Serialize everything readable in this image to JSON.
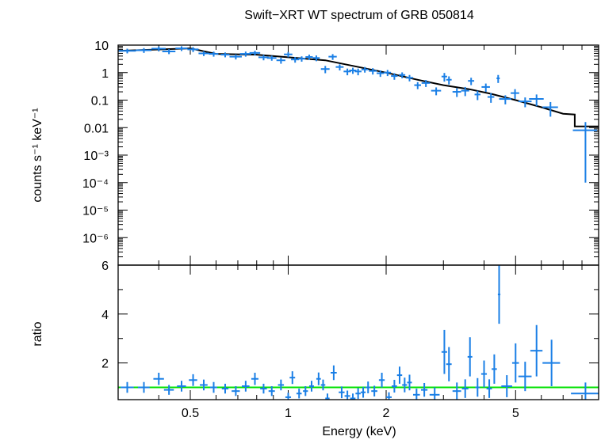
{
  "title": "Swift−XRT WT spectrum of GRB 050814",
  "xlabel": "Energy (keV)",
  "colors": {
    "data": "#1a7fe6",
    "model": "#000000",
    "unity": "#00e000",
    "axes": "#000000"
  },
  "chart_data": [
    {
      "type": "scatter",
      "panel": "spectrum",
      "ylabel": "counts s⁻¹ keV⁻¹",
      "xscale": "log",
      "yscale": "log",
      "xlim": [
        0.3,
        9.0
      ],
      "ylim": [
        1e-07,
        10
      ],
      "x_ticks": [
        0.5,
        1,
        2,
        5
      ],
      "y_ticks": [
        {
          "v": 10,
          "label": "10"
        },
        {
          "v": 1,
          "label": "1"
        },
        {
          "v": 0.1,
          "label": "0.1"
        },
        {
          "v": 0.01,
          "label": "0.01"
        },
        {
          "v": 0.001,
          "label": "10⁻³"
        },
        {
          "v": 0.0001,
          "label": "10⁻⁴"
        },
        {
          "v": 1e-05,
          "label": "10⁻⁵"
        },
        {
          "v": 1e-06,
          "label": "10⁻⁶"
        }
      ],
      "points": [
        {
          "x": 0.32,
          "dx": 0.02,
          "y": 6.2,
          "dy": 1.2
        },
        {
          "x": 0.36,
          "dx": 0.02,
          "y": 6.5,
          "dy": 1.3
        },
        {
          "x": 0.4,
          "dx": 0.02,
          "y": 7.4,
          "dy": 1.5
        },
        {
          "x": 0.43,
          "dx": 0.02,
          "y": 5.9,
          "dy": 1.2
        },
        {
          "x": 0.47,
          "dx": 0.02,
          "y": 7.6,
          "dy": 1.5
        },
        {
          "x": 0.51,
          "dx": 0.02,
          "y": 7.0,
          "dy": 1.4
        },
        {
          "x": 0.55,
          "dx": 0.02,
          "y": 5.0,
          "dy": 1.0
        },
        {
          "x": 0.59,
          "dx": 0.02,
          "y": 4.8,
          "dy": 1.0
        },
        {
          "x": 0.64,
          "dx": 0.02,
          "y": 4.5,
          "dy": 0.9
        },
        {
          "x": 0.69,
          "dx": 0.03,
          "y": 3.8,
          "dy": 0.8
        },
        {
          "x": 0.74,
          "dx": 0.03,
          "y": 4.8,
          "dy": 1.0
        },
        {
          "x": 0.79,
          "dx": 0.03,
          "y": 5.2,
          "dy": 1.0
        },
        {
          "x": 0.84,
          "dx": 0.03,
          "y": 3.6,
          "dy": 0.8
        },
        {
          "x": 0.89,
          "dx": 0.03,
          "y": 3.4,
          "dy": 0.7
        },
        {
          "x": 0.95,
          "dx": 0.03,
          "y": 2.8,
          "dy": 0.7
        },
        {
          "x": 1.0,
          "dx": 0.03,
          "y": 4.6,
          "dy": 1.0
        },
        {
          "x": 1.05,
          "dx": 0.03,
          "y": 3.0,
          "dy": 0.7
        },
        {
          "x": 1.1,
          "dx": 0.03,
          "y": 3.2,
          "dy": 0.7
        },
        {
          "x": 1.16,
          "dx": 0.03,
          "y": 3.7,
          "dy": 0.8
        },
        {
          "x": 1.22,
          "dx": 0.03,
          "y": 3.4,
          "dy": 0.8
        },
        {
          "x": 1.3,
          "dx": 0.04,
          "y": 1.35,
          "dy": 0.4
        },
        {
          "x": 1.37,
          "dx": 0.04,
          "y": 3.8,
          "dy": 0.9
        },
        {
          "x": 1.44,
          "dx": 0.04,
          "y": 1.6,
          "dy": 0.4
        },
        {
          "x": 1.52,
          "dx": 0.04,
          "y": 1.1,
          "dy": 0.3
        },
        {
          "x": 1.58,
          "dx": 0.04,
          "y": 1.2,
          "dy": 0.3
        },
        {
          "x": 1.64,
          "dx": 0.04,
          "y": 1.1,
          "dy": 0.3
        },
        {
          "x": 1.72,
          "dx": 0.04,
          "y": 1.3,
          "dy": 0.3
        },
        {
          "x": 1.82,
          "dx": 0.05,
          "y": 1.15,
          "dy": 0.3
        },
        {
          "x": 1.92,
          "dx": 0.05,
          "y": 0.95,
          "dy": 0.25
        },
        {
          "x": 2.02,
          "dx": 0.05,
          "y": 1.0,
          "dy": 0.25
        },
        {
          "x": 2.12,
          "dx": 0.05,
          "y": 0.75,
          "dy": 0.2
        },
        {
          "x": 2.24,
          "dx": 0.05,
          "y": 0.82,
          "dy": 0.2
        },
        {
          "x": 2.36,
          "dx": 0.06,
          "y": 0.65,
          "dy": 0.17
        },
        {
          "x": 2.5,
          "dx": 0.06,
          "y": 0.35,
          "dy": 0.1
        },
        {
          "x": 2.65,
          "dx": 0.08,
          "y": 0.42,
          "dy": 0.12
        },
        {
          "x": 2.85,
          "dx": 0.1,
          "y": 0.22,
          "dy": 0.07
        },
        {
          "x": 3.02,
          "dx": 0.06,
          "y": 0.72,
          "dy": 0.25
        },
        {
          "x": 3.12,
          "dx": 0.06,
          "y": 0.55,
          "dy": 0.18
        },
        {
          "x": 3.3,
          "dx": 0.1,
          "y": 0.2,
          "dy": 0.07
        },
        {
          "x": 3.5,
          "dx": 0.1,
          "y": 0.22,
          "dy": 0.08
        },
        {
          "x": 3.65,
          "dx": 0.08,
          "y": 0.5,
          "dy": 0.15
        },
        {
          "x": 3.82,
          "dx": 0.08,
          "y": 0.16,
          "dy": 0.06
        },
        {
          "x": 4.05,
          "dx": 0.12,
          "y": 0.3,
          "dy": 0.1
        },
        {
          "x": 4.2,
          "dx": 0.1,
          "y": 0.13,
          "dy": 0.05
        },
        {
          "x": 4.42,
          "dx": 0.05,
          "y": 0.62,
          "dy": 0.2
        },
        {
          "x": 4.65,
          "dx": 0.2,
          "y": 0.11,
          "dy": 0.04
        },
        {
          "x": 4.98,
          "dx": 0.15,
          "y": 0.18,
          "dy": 0.07
        },
        {
          "x": 5.35,
          "dx": 0.25,
          "y": 0.09,
          "dy": 0.035
        },
        {
          "x": 5.8,
          "dx": 0.3,
          "y": 0.11,
          "dy": 0.05
        },
        {
          "x": 6.4,
          "dx": 0.35,
          "y": 0.055,
          "dy": 0.03
        },
        {
          "x": 8.2,
          "dx": 0.7,
          "y": 0.008,
          "dy": 0.0079
        }
      ],
      "model": [
        {
          "x0": 0.3,
          "x1": 0.5,
          "y0": 6.2,
          "y1": 7.6
        },
        {
          "x0": 0.5,
          "x1": 0.6,
          "y0": 7.6,
          "y1": 4.8
        },
        {
          "x0": 0.6,
          "x1": 0.8,
          "y0": 4.8,
          "y1": 4.5
        },
        {
          "x0": 0.8,
          "x1": 1.0,
          "y0": 4.5,
          "y1": 3.6
        },
        {
          "x0": 1.0,
          "x1": 1.3,
          "y0": 3.6,
          "y1": 2.8
        },
        {
          "x0": 1.3,
          "x1": 1.6,
          "y0": 2.8,
          "y1": 1.7
        },
        {
          "x0": 1.6,
          "x1": 2.0,
          "y0": 1.7,
          "y1": 1.0
        },
        {
          "x0": 2.0,
          "x1": 2.5,
          "y0": 1.0,
          "y1": 0.55
        },
        {
          "x0": 2.5,
          "x1": 3.0,
          "y0": 0.55,
          "y1": 0.35
        },
        {
          "x0": 3.0,
          "x1": 3.6,
          "y0": 0.35,
          "y1": 0.25
        },
        {
          "x0": 3.6,
          "x1": 4.2,
          "y0": 0.25,
          "y1": 0.17
        },
        {
          "x0": 4.2,
          "x1": 5.0,
          "y0": 0.17,
          "y1": 0.1
        },
        {
          "x0": 5.0,
          "x1": 6.0,
          "y0": 0.1,
          "y1": 0.055
        },
        {
          "x0": 6.0,
          "x1": 7.0,
          "y0": 0.055,
          "y1": 0.032
        },
        {
          "x0": 7.0,
          "x1": 7.6,
          "y0": 0.032,
          "y1": 0.03
        },
        {
          "x0": 7.6,
          "x1": 9.0,
          "y0": 0.011,
          "y1": 0.011
        }
      ]
    },
    {
      "type": "scatter",
      "panel": "ratio",
      "ylabel": "ratio",
      "xscale": "log",
      "yscale": "linear",
      "xlim": [
        0.3,
        9.0
      ],
      "ylim": [
        0.5,
        6
      ],
      "y_ticks": [
        {
          "v": 2,
          "label": "2"
        },
        {
          "v": 4,
          "label": "4"
        },
        {
          "v": 6,
          "label": "6"
        }
      ],
      "unity": 1,
      "points": [
        {
          "x": 0.32,
          "dx": 0.015,
          "y": 1.0,
          "dy": 0.22
        },
        {
          "x": 0.36,
          "dx": 0.015,
          "y": 1.0,
          "dy": 0.22
        },
        {
          "x": 0.4,
          "dx": 0.015,
          "y": 1.35,
          "dy": 0.25
        },
        {
          "x": 0.43,
          "dx": 0.015,
          "y": 0.9,
          "dy": 0.2
        },
        {
          "x": 0.47,
          "dx": 0.015,
          "y": 1.05,
          "dy": 0.22
        },
        {
          "x": 0.51,
          "dx": 0.015,
          "y": 1.3,
          "dy": 0.24
        },
        {
          "x": 0.55,
          "dx": 0.015,
          "y": 1.1,
          "dy": 0.22
        },
        {
          "x": 0.59,
          "dx": 0.015,
          "y": 1.0,
          "dy": 0.22
        },
        {
          "x": 0.64,
          "dx": 0.015,
          "y": 0.95,
          "dy": 0.2
        },
        {
          "x": 0.69,
          "dx": 0.02,
          "y": 0.85,
          "dy": 0.2
        },
        {
          "x": 0.74,
          "dx": 0.02,
          "y": 1.05,
          "dy": 0.22
        },
        {
          "x": 0.79,
          "dx": 0.02,
          "y": 1.35,
          "dy": 0.25
        },
        {
          "x": 0.84,
          "dx": 0.02,
          "y": 0.95,
          "dy": 0.2
        },
        {
          "x": 0.89,
          "dx": 0.02,
          "y": 0.85,
          "dy": 0.2
        },
        {
          "x": 0.95,
          "dx": 0.02,
          "y": 1.1,
          "dy": 0.22
        },
        {
          "x": 1.0,
          "dx": 0.02,
          "y": 0.6,
          "dy": 0.18
        },
        {
          "x": 1.03,
          "dx": 0.02,
          "y": 1.4,
          "dy": 0.26
        },
        {
          "x": 1.08,
          "dx": 0.02,
          "y": 0.75,
          "dy": 0.2
        },
        {
          "x": 1.13,
          "dx": 0.02,
          "y": 0.85,
          "dy": 0.2
        },
        {
          "x": 1.18,
          "dx": 0.02,
          "y": 1.05,
          "dy": 0.22
        },
        {
          "x": 1.24,
          "dx": 0.02,
          "y": 1.35,
          "dy": 0.26
        },
        {
          "x": 1.28,
          "dx": 0.02,
          "y": 1.1,
          "dy": 0.22
        },
        {
          "x": 1.32,
          "dx": 0.02,
          "y": 0.55,
          "dy": 0.2
        },
        {
          "x": 1.38,
          "dx": 0.03,
          "y": 1.6,
          "dy": 0.3
        },
        {
          "x": 1.46,
          "dx": 0.03,
          "y": 0.8,
          "dy": 0.24
        },
        {
          "x": 1.52,
          "dx": 0.03,
          "y": 0.65,
          "dy": 0.22
        },
        {
          "x": 1.58,
          "dx": 0.03,
          "y": 0.55,
          "dy": 0.2
        },
        {
          "x": 1.64,
          "dx": 0.03,
          "y": 0.75,
          "dy": 0.22
        },
        {
          "x": 1.7,
          "dx": 0.03,
          "y": 0.8,
          "dy": 0.22
        },
        {
          "x": 1.76,
          "dx": 0.03,
          "y": 1.0,
          "dy": 0.24
        },
        {
          "x": 1.84,
          "dx": 0.04,
          "y": 0.85,
          "dy": 0.22
        },
        {
          "x": 1.94,
          "dx": 0.04,
          "y": 1.3,
          "dy": 0.3
        },
        {
          "x": 2.04,
          "dx": 0.04,
          "y": 0.6,
          "dy": 0.2
        },
        {
          "x": 2.12,
          "dx": 0.04,
          "y": 1.05,
          "dy": 0.26
        },
        {
          "x": 2.2,
          "dx": 0.04,
          "y": 1.5,
          "dy": 0.35
        },
        {
          "x": 2.28,
          "dx": 0.04,
          "y": 1.1,
          "dy": 0.3
        },
        {
          "x": 2.36,
          "dx": 0.04,
          "y": 1.2,
          "dy": 0.32
        },
        {
          "x": 2.48,
          "dx": 0.06,
          "y": 0.7,
          "dy": 0.25
        },
        {
          "x": 2.62,
          "dx": 0.06,
          "y": 0.9,
          "dy": 0.28
        },
        {
          "x": 2.82,
          "dx": 0.1,
          "y": 0.7,
          "dy": 0.3
        },
        {
          "x": 3.02,
          "dx": 0.06,
          "y": 2.45,
          "dy": 0.9
        },
        {
          "x": 3.12,
          "dx": 0.06,
          "y": 1.95,
          "dy": 0.7
        },
        {
          "x": 3.3,
          "dx": 0.1,
          "y": 0.85,
          "dy": 0.35
        },
        {
          "x": 3.5,
          "dx": 0.08,
          "y": 0.95,
          "dy": 0.38
        },
        {
          "x": 3.62,
          "dx": 0.06,
          "y": 2.25,
          "dy": 0.8
        },
        {
          "x": 3.82,
          "dx": 0.06,
          "y": 1.0,
          "dy": 0.38
        },
        {
          "x": 4.0,
          "dx": 0.08,
          "y": 1.55,
          "dy": 0.55
        },
        {
          "x": 4.15,
          "dx": 0.08,
          "y": 0.95,
          "dy": 0.38
        },
        {
          "x": 4.3,
          "dx": 0.08,
          "y": 1.75,
          "dy": 0.6
        },
        {
          "x": 4.45,
          "dx": 0.04,
          "y": 4.8,
          "dy": 1.2
        },
        {
          "x": 4.7,
          "dx": 0.18,
          "y": 1.05,
          "dy": 0.45
        },
        {
          "x": 5.0,
          "dx": 0.12,
          "y": 2.0,
          "dy": 0.8
        },
        {
          "x": 5.35,
          "dx": 0.25,
          "y": 1.45,
          "dy": 0.6
        },
        {
          "x": 5.8,
          "dx": 0.25,
          "y": 2.5,
          "dy": 1.05
        },
        {
          "x": 6.45,
          "dx": 0.4,
          "y": 2.0,
          "dy": 0.95
        },
        {
          "x": 8.2,
          "dx": 0.8,
          "y": 0.75,
          "dy": 0.45
        }
      ]
    }
  ]
}
